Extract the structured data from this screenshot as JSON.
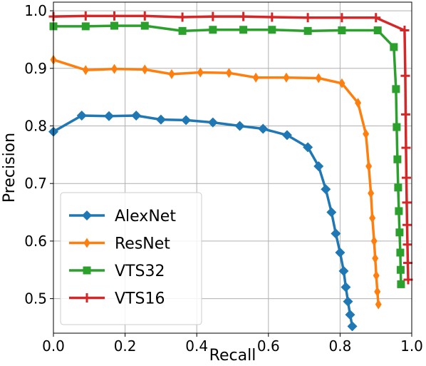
{
  "chart_data": {
    "type": "line",
    "xlabel": "Recall",
    "ylabel": "Precision",
    "xlim": [
      0.0,
      1.0
    ],
    "ylim": [
      0.44,
      1.015
    ],
    "xticks": [
      0.0,
      0.2,
      0.4,
      0.6,
      0.8,
      1.0
    ],
    "xtick_labels": [
      "0.0",
      "0.2",
      "0.4",
      "0.6",
      "0.8",
      "1.0"
    ],
    "yticks": [
      0.5,
      0.6,
      0.7,
      0.8,
      0.9,
      1.0
    ],
    "ytick_labels": [
      "0.5",
      "0.6",
      "0.7",
      "0.8",
      "0.9",
      "1.0"
    ],
    "grid": true,
    "legend_position": "lower-left",
    "series": [
      {
        "name": "AlexNet",
        "color": "#1f77b4",
        "marker": "diamond",
        "points": [
          [
            0.0,
            0.79
          ],
          [
            0.079,
            0.818
          ],
          [
            0.155,
            0.817
          ],
          [
            0.231,
            0.818
          ],
          [
            0.3,
            0.811
          ],
          [
            0.37,
            0.81
          ],
          [
            0.445,
            0.806
          ],
          [
            0.52,
            0.8
          ],
          [
            0.585,
            0.795
          ],
          [
            0.652,
            0.784
          ],
          [
            0.71,
            0.763
          ],
          [
            0.74,
            0.73
          ],
          [
            0.76,
            0.69
          ],
          [
            0.776,
            0.65
          ],
          [
            0.788,
            0.613
          ],
          [
            0.8,
            0.58
          ],
          [
            0.81,
            0.548
          ],
          [
            0.816,
            0.52
          ],
          [
            0.822,
            0.495
          ],
          [
            0.828,
            0.472
          ],
          [
            0.834,
            0.452
          ]
        ]
      },
      {
        "name": "ResNet",
        "color": "#ff7f0e",
        "marker": "thin-diamond",
        "points": [
          [
            0.0,
            0.915
          ],
          [
            0.09,
            0.897
          ],
          [
            0.17,
            0.899
          ],
          [
            0.255,
            0.898
          ],
          [
            0.33,
            0.89
          ],
          [
            0.41,
            0.893
          ],
          [
            0.49,
            0.892
          ],
          [
            0.565,
            0.884
          ],
          [
            0.65,
            0.884
          ],
          [
            0.74,
            0.883
          ],
          [
            0.805,
            0.874
          ],
          [
            0.85,
            0.84
          ],
          [
            0.872,
            0.786
          ],
          [
            0.88,
            0.73
          ],
          [
            0.886,
            0.683
          ],
          [
            0.89,
            0.64
          ],
          [
            0.895,
            0.6
          ],
          [
            0.898,
            0.57
          ],
          [
            0.901,
            0.54
          ],
          [
            0.904,
            0.512
          ],
          [
            0.907,
            0.49
          ]
        ]
      },
      {
        "name": "VTS32",
        "color": "#2ca02c",
        "marker": "square",
        "points": [
          [
            0.0,
            0.973
          ],
          [
            0.09,
            0.973
          ],
          [
            0.17,
            0.974
          ],
          [
            0.255,
            0.974
          ],
          [
            0.36,
            0.965
          ],
          [
            0.445,
            0.967
          ],
          [
            0.53,
            0.967
          ],
          [
            0.61,
            0.967
          ],
          [
            0.71,
            0.965
          ],
          [
            0.805,
            0.966
          ],
          [
            0.905,
            0.966
          ],
          [
            0.95,
            0.937
          ],
          [
            0.956,
            0.864
          ],
          [
            0.958,
            0.798
          ],
          [
            0.96,
            0.742
          ],
          [
            0.962,
            0.693
          ],
          [
            0.964,
            0.652
          ],
          [
            0.966,
            0.615
          ],
          [
            0.968,
            0.58
          ],
          [
            0.969,
            0.55
          ],
          [
            0.97,
            0.525
          ]
        ]
      },
      {
        "name": "VTS16",
        "color": "#d62728",
        "marker": "plus",
        "points": [
          [
            0.0,
            0.99
          ],
          [
            0.09,
            0.991
          ],
          [
            0.17,
            0.991
          ],
          [
            0.255,
            0.991
          ],
          [
            0.36,
            0.989
          ],
          [
            0.445,
            0.99
          ],
          [
            0.53,
            0.99
          ],
          [
            0.61,
            0.989
          ],
          [
            0.71,
            0.988
          ],
          [
            0.805,
            0.988
          ],
          [
            0.9,
            0.988
          ],
          [
            0.98,
            0.966
          ],
          [
            0.982,
            0.887
          ],
          [
            0.983,
            0.82
          ],
          [
            0.984,
            0.762
          ],
          [
            0.985,
            0.71
          ],
          [
            0.986,
            0.667
          ],
          [
            0.987,
            0.628
          ],
          [
            0.988,
            0.594
          ],
          [
            0.989,
            0.562
          ],
          [
            0.99,
            0.533
          ]
        ]
      }
    ]
  }
}
